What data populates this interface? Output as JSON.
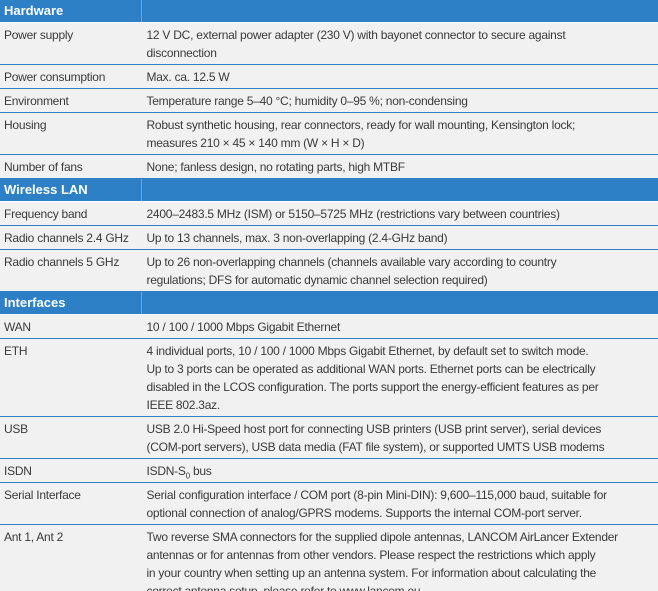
{
  "sections": [
    {
      "title": "Hardware",
      "rows": [
        {
          "label": "Power supply",
          "lines": [
            "12 V DC, external power adapter (230 V) with bayonet connector to secure against",
            "disconnection"
          ]
        },
        {
          "label": "Power consumption",
          "lines": [
            "Max. ca. 12.5 W"
          ]
        },
        {
          "label": "Environment",
          "lines": [
            "Temperature range 5–40 °C; humidity 0–95 %; non-condensing"
          ]
        },
        {
          "label": "Housing",
          "lines": [
            "Robust synthetic housing, rear connectors, ready for wall mounting, Kensington lock;",
            "measures 210 × 45 × 140 mm (W × H × D)"
          ]
        },
        {
          "label": "Number of fans",
          "lines": [
            "None; fanless design, no rotating parts, high MTBF"
          ]
        }
      ]
    },
    {
      "title": "Wireless LAN",
      "rows": [
        {
          "label": "Frequency band",
          "lines": [
            "2400–2483.5 MHz (ISM) or 5150–5725 MHz (restrictions vary between countries)"
          ]
        },
        {
          "label": "Radio channels 2.4 GHz",
          "lines": [
            "Up to 13 channels, max. 3 non-overlapping (2.4-GHz band)"
          ]
        },
        {
          "label": "Radio channels 5 GHz",
          "lines": [
            "Up to 26 non-overlapping channels (channels available vary according to country",
            "regulations; DFS for automatic dynamic channel selection required)"
          ]
        }
      ]
    },
    {
      "title": "Interfaces",
      "rows": [
        {
          "label": "WAN",
          "lines": [
            "10 / 100 / 1000 Mbps Gigabit Ethernet"
          ]
        },
        {
          "label": "ETH",
          "lines": [
            "4 individual ports, 10 / 100 / 1000 Mbps Gigabit Ethernet, by default set to switch mode.",
            "Up to 3 ports can be operated as additional WAN ports. Ethernet ports can be electrically",
            "disabled in the LCOS configuration. The ports support the energy-efficient features as per",
            "IEEE 802.3az."
          ]
        },
        {
          "label": "USB",
          "lines": [
            "USB 2.0 Hi-Speed host port for connecting USB printers (USB print server), serial devices",
            "(COM-port servers), USB data media (FAT file system), or supported UMTS USB modems"
          ]
        },
        {
          "label": "ISDN",
          "isdn": {
            "pre": "ISDN-S",
            "sub": "0",
            "post": " bus"
          }
        },
        {
          "label": "Serial Interface",
          "lines": [
            "Serial configuration interface / COM port (8-pin Mini-DIN): 9,600–115,000 baud, suitable for",
            "optional connection of analog/GPRS modems. Supports the internal COM-port server."
          ]
        },
        {
          "label": "Ant 1, Ant 2",
          "lines": [
            "Two reverse SMA connectors for the supplied dipole antennas, LANCOM AirLancer Extender",
            "antennas or for antennas from other vendors. Please respect the restrictions which apply",
            "in your country when setting up an antenna system. For information about calculating the",
            "correct antenna setup, please refer to www.lancom.eu."
          ]
        }
      ]
    }
  ]
}
